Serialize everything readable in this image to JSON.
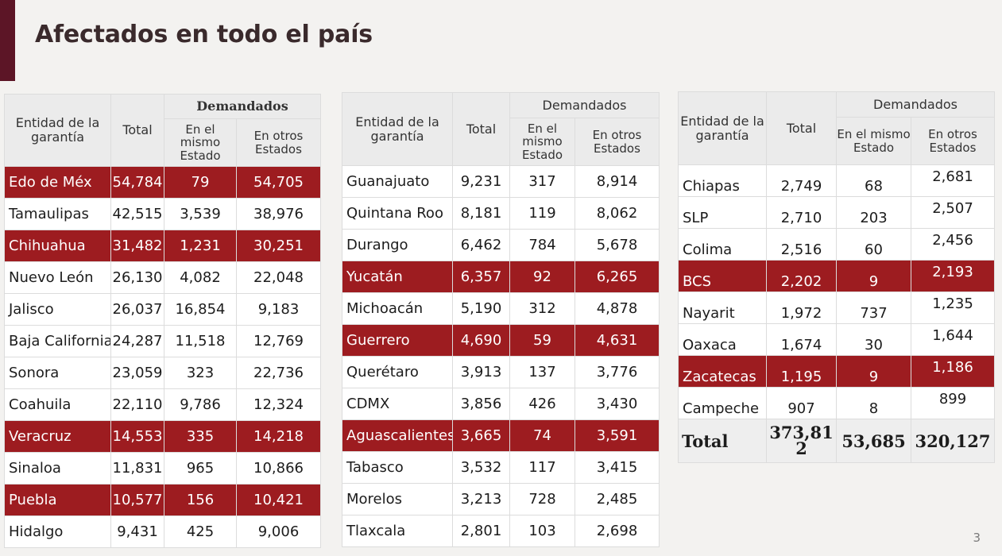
{
  "page": {
    "title": "Afectados en todo el país",
    "page_number": "3",
    "accent_color": "#5c1526",
    "highlight_color": "#9d1c20"
  },
  "headers": {
    "entity": "Entidad de la garantía",
    "total": "Total",
    "demandados": "Demandados",
    "same_state": "En el mismo Estado",
    "other_states": "En otros Estados"
  },
  "tables": [
    {
      "rows": [
        {
          "entity": "Edo de Méx",
          "total": "54,784",
          "same": "79",
          "other": "54,705",
          "highlight": true
        },
        {
          "entity": "Tamaulipas",
          "total": "42,515",
          "same": "3,539",
          "other": "38,976",
          "highlight": false
        },
        {
          "entity": "Chihuahua",
          "total": "31,482",
          "same": "1,231",
          "other": "30,251",
          "highlight": true
        },
        {
          "entity": "Nuevo León",
          "total": "26,130",
          "same": "4,082",
          "other": "22,048",
          "highlight": false
        },
        {
          "entity": "Jalisco",
          "total": "26,037",
          "same": "16,854",
          "other": "9,183",
          "highlight": false
        },
        {
          "entity": "Baja California",
          "total": "24,287",
          "same": "11,518",
          "other": "12,769",
          "highlight": false
        },
        {
          "entity": "Sonora",
          "total": "23,059",
          "same": "323",
          "other": "22,736",
          "highlight": false
        },
        {
          "entity": "Coahuila",
          "total": "22,110",
          "same": "9,786",
          "other": "12,324",
          "highlight": false
        },
        {
          "entity": "Veracruz",
          "total": "14,553",
          "same": "335",
          "other": "14,218",
          "highlight": true
        },
        {
          "entity": "Sinaloa",
          "total": "11,831",
          "same": "965",
          "other": "10,866",
          "highlight": false
        },
        {
          "entity": "Puebla",
          "total": "10,577",
          "same": "156",
          "other": "10,421",
          "highlight": true
        },
        {
          "entity": "Hidalgo",
          "total": "9,431",
          "same": "425",
          "other": "9,006",
          "highlight": false
        }
      ]
    },
    {
      "rows": [
        {
          "entity": "Guanajuato",
          "total": "9,231",
          "same": "317",
          "other": "8,914",
          "highlight": false
        },
        {
          "entity": "Quintana Roo",
          "total": "8,181",
          "same": "119",
          "other": "8,062",
          "highlight": false
        },
        {
          "entity": "Durango",
          "total": "6,462",
          "same": "784",
          "other": "5,678",
          "highlight": false
        },
        {
          "entity": "Yucatán",
          "total": "6,357",
          "same": "92",
          "other": "6,265",
          "highlight": true
        },
        {
          "entity": "Michoacán",
          "total": "5,190",
          "same": "312",
          "other": "4,878",
          "highlight": false
        },
        {
          "entity": "Guerrero",
          "total": "4,690",
          "same": "59",
          "other": "4,631",
          "highlight": true
        },
        {
          "entity": "Querétaro",
          "total": "3,913",
          "same": "137",
          "other": "3,776",
          "highlight": false
        },
        {
          "entity": "CDMX",
          "total": "3,856",
          "same": "426",
          "other": "3,430",
          "highlight": false
        },
        {
          "entity": "Aguascalientes",
          "total": "3,665",
          "same": "74",
          "other": "3,591",
          "highlight": true
        },
        {
          "entity": "Tabasco",
          "total": "3,532",
          "same": "117",
          "other": "3,415",
          "highlight": false
        },
        {
          "entity": "Morelos",
          "total": "3,213",
          "same": "728",
          "other": "2,485",
          "highlight": false
        },
        {
          "entity": "Tlaxcala",
          "total": "2,801",
          "same": "103",
          "other": "2,698",
          "highlight": false
        }
      ]
    },
    {
      "rows": [
        {
          "entity": "Chiapas",
          "total": "2,749",
          "same": "68",
          "other": "2,681",
          "highlight": false
        },
        {
          "entity": "SLP",
          "total": "2,710",
          "same": "203",
          "other": "2,507",
          "highlight": false
        },
        {
          "entity": "Colima",
          "total": "2,516",
          "same": "60",
          "other": "2,456",
          "highlight": false
        },
        {
          "entity": "BCS",
          "total": "2,202",
          "same": "9",
          "other": "2,193",
          "highlight": true
        },
        {
          "entity": "Nayarit",
          "total": "1,972",
          "same": "737",
          "other": "1,235",
          "highlight": false
        },
        {
          "entity": "Oaxaca",
          "total": "1,674",
          "same": "30",
          "other": "1,644",
          "highlight": false
        },
        {
          "entity": "Zacatecas",
          "total": "1,195",
          "same": "9",
          "other": "1,186",
          "highlight": true
        },
        {
          "entity": "Campeche",
          "total": "907",
          "same": "8",
          "other": "899",
          "highlight": false
        }
      ],
      "total_row": {
        "label": "Total",
        "total": "373,812",
        "same": "53,685",
        "other": "320,127"
      }
    }
  ]
}
